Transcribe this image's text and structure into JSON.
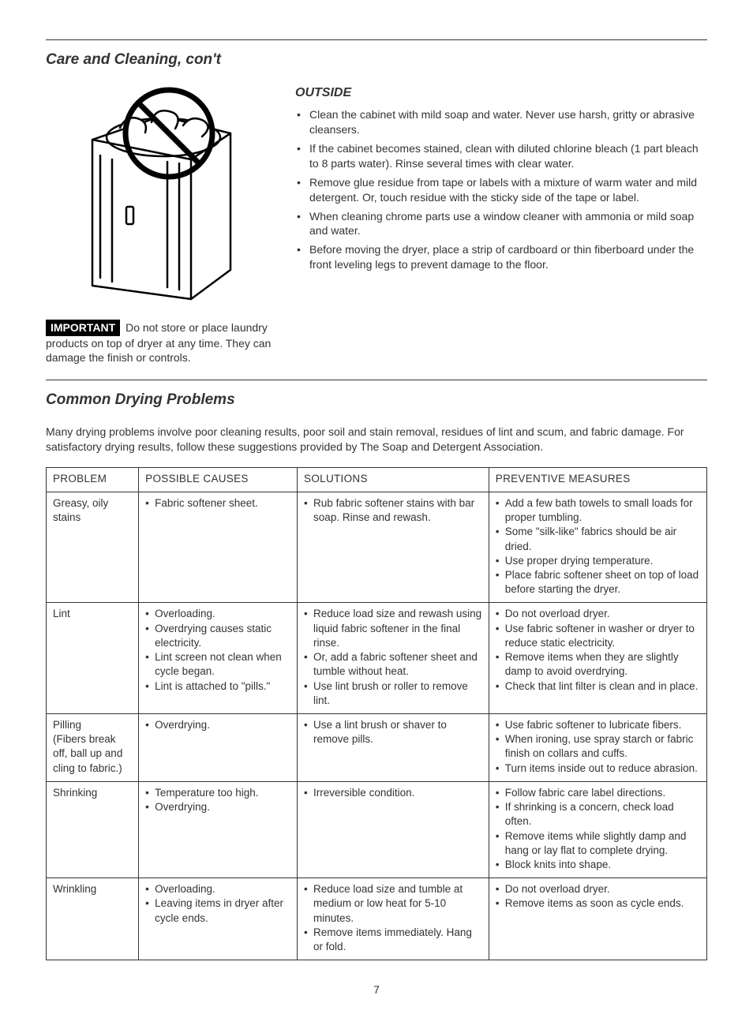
{
  "section1_title": "Care and Cleaning, con't",
  "important_label": "IMPORTANT",
  "important_text": " Do not store or place laundry products on top of dryer at any time. They can damage the finish or controls.",
  "outside_heading": "OUTSIDE",
  "outside_bullets": [
    "Clean the cabinet with mild soap and water. Never use harsh, gritty or abrasive cleansers.",
    "If the cabinet becomes stained, clean with diluted chlorine bleach (1 part bleach to 8 parts water). Rinse several times with clear water.",
    "Remove glue residue from tape or labels with a mixture of warm water and mild detergent. Or, touch residue with the sticky side of the tape or label.",
    "When cleaning chrome parts use a window cleaner with ammonia or mild soap and water.",
    "Before moving the dryer, place a strip of cardboard or thin fiberboard under the front leveling legs to prevent damage to the floor."
  ],
  "section2_title": "Common Drying Problems",
  "section2_intro": "Many drying problems involve poor cleaning results, poor soil and stain removal, residues of lint and scum, and fabric damage. For satisfactory drying results, follow these suggestions provided by The Soap and Detergent Association.",
  "table": {
    "headers": [
      "PROBLEM",
      "POSSIBLE CAUSES",
      "SOLUTIONS",
      "PREVENTIVE MEASURES"
    ],
    "rows": [
      {
        "problem": "Greasy, oily stains",
        "causes": [
          "Fabric softener sheet."
        ],
        "solutions": [
          "Rub fabric softener stains with bar soap. Rinse and rewash."
        ],
        "preventive": [
          "Add a few bath towels to small loads for proper tumbling.",
          "Some \"silk-like\" fabrics should be air dried.",
          "Use proper drying temperature.",
          "Place fabric softener sheet on top of load before starting the dryer."
        ]
      },
      {
        "problem": "Lint",
        "causes": [
          "Overloading.",
          "Overdrying causes static electricity.",
          "Lint screen not clean when cycle began.",
          "Lint is attached to \"pills.\""
        ],
        "solutions": [
          "Reduce load size and rewash using liquid fabric softener in the final rinse.",
          "Or, add a fabric softener sheet and tumble without heat.",
          "Use lint brush or roller to remove lint."
        ],
        "preventive": [
          "Do not overload dryer.",
          "Use fabric softener in washer or dryer to reduce static electricity.",
          "Remove items when they are slightly damp to avoid overdrying.",
          "Check that lint filter is clean and in place."
        ]
      },
      {
        "problem": "Pilling\n(Fibers break off, ball up and cling to fabric.)",
        "causes": [
          "Overdrying."
        ],
        "solutions": [
          "Use a lint brush or shaver to remove pills."
        ],
        "preventive": [
          "Use fabric softener to lubricate fibers.",
          "When ironing, use spray starch or fabric finish on collars and cuffs.",
          "Turn items inside out to reduce abrasion."
        ]
      },
      {
        "problem": "Shrinking",
        "causes": [
          "Temperature too high.",
          "Overdrying."
        ],
        "solutions": [
          "Irreversible condition."
        ],
        "preventive": [
          "Follow fabric care label directions.",
          "If shrinking is a concern, check load often.",
          "Remove items while slightly damp and hang or lay flat to complete drying.",
          "Block knits into shape."
        ]
      },
      {
        "problem": "Wrinkling",
        "causes": [
          "Overloading.",
          "Leaving items in dryer after cycle ends."
        ],
        "solutions": [
          "Reduce load size and tumble at medium or low heat for 5-10 minutes.",
          "Remove items immediately. Hang or fold."
        ],
        "preventive": [
          "Do not overload dryer.",
          "Remove items as soon as cycle ends."
        ]
      }
    ]
  },
  "page_number": "7"
}
